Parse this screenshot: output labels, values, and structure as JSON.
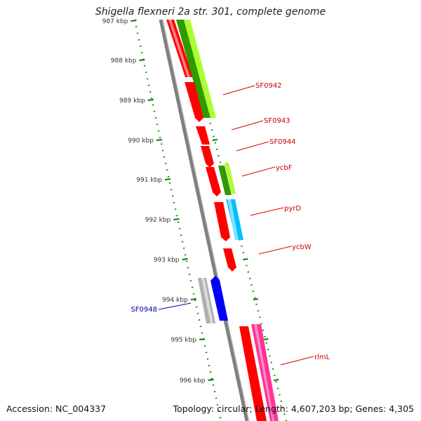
{
  "title": "Shigella flexneri 2a str. 301, complete genome",
  "accession": "Accession: NC_004337",
  "summary": "Topology: circular; Length: 4,607,203 bp; Genes: 4,305",
  "ticks": [
    "987 kbp",
    "988 kbp",
    "989 kbp",
    "990 kbp",
    "991 kbp",
    "992 kbp",
    "993 kbp",
    "994 kbp",
    "995 kbp",
    "996 kbp"
  ],
  "genes": [
    {
      "name": "SF0942",
      "color": "#cc0000"
    },
    {
      "name": "SF0943",
      "color": "#cc0000"
    },
    {
      "name": "SF0944",
      "color": "#cc0000"
    },
    {
      "name": "ycbF",
      "color": "#cc0000"
    },
    {
      "name": "pyrD",
      "color": "#cc0000"
    },
    {
      "name": "ycbW",
      "color": "#cc0000"
    },
    {
      "name": "SF0948",
      "color": "#0000aa"
    },
    {
      "name": "rlmL",
      "color": "#cc0000"
    }
  ],
  "colors": {
    "cds_forward": "#ff0000",
    "cds_reverse": "#0000ff",
    "gene_track": "#b0b0b0",
    "backbone": "#808080",
    "tick": "#008000",
    "green_feature": "#33aa00",
    "lime_feature": "#aaff33",
    "cyan_feature": "#00bfff",
    "pink_feature": "#ff3399"
  }
}
